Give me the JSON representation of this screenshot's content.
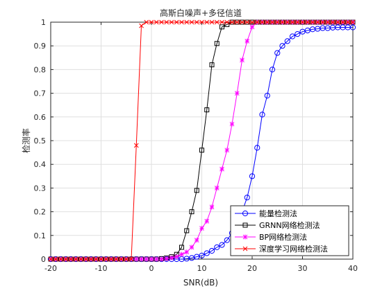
{
  "chart_data": {
    "type": "line",
    "title": "高斯白噪声+多径信道",
    "xlabel": "SNR(dB)",
    "ylabel": "检测率",
    "xlim": [
      -20,
      40
    ],
    "ylim": [
      0,
      1
    ],
    "xticks": [
      "-20",
      "-10",
      "0",
      "10",
      "20",
      "30",
      "40"
    ],
    "yticks": [
      "0",
      "0.1",
      "0.2",
      "0.3",
      "0.4",
      "0.5",
      "0.6",
      "0.7",
      "0.8",
      "0.9",
      "1"
    ],
    "grid": true,
    "legend_position": "bottom-right",
    "series": [
      {
        "name": "能量检测法",
        "color": "#0000ff",
        "marker": "circle",
        "x": [
          -20,
          -19,
          -18,
          -17,
          -16,
          -15,
          -14,
          -13,
          -12,
          -11,
          -10,
          -9,
          -8,
          -7,
          -6,
          -5,
          -4,
          -3,
          -2,
          -1,
          0,
          1,
          2,
          3,
          4,
          5,
          6,
          7,
          8,
          9,
          10,
          11,
          12,
          13,
          14,
          15,
          16,
          17,
          18,
          19,
          20,
          21,
          22,
          23,
          24,
          25,
          26,
          27,
          28,
          29,
          30,
          31,
          32,
          33,
          34,
          35,
          36,
          37,
          38,
          39,
          40
        ],
        "y": [
          0,
          0,
          0,
          0,
          0,
          0,
          0,
          0,
          0,
          0,
          0,
          0,
          0,
          0,
          0,
          0,
          0,
          0,
          0,
          0,
          0,
          0,
          0,
          0,
          0,
          0,
          0,
          0.002,
          0.005,
          0.01,
          0.015,
          0.025,
          0.035,
          0.05,
          0.06,
          0.08,
          0.11,
          0.15,
          0.2,
          0.26,
          0.35,
          0.47,
          0.61,
          0.69,
          0.8,
          0.87,
          0.9,
          0.92,
          0.94,
          0.95,
          0.96,
          0.965,
          0.97,
          0.972,
          0.975,
          0.975,
          0.977,
          0.978,
          0.978,
          0.978,
          0.978
        ]
      },
      {
        "name": "GRNN网络检测法",
        "color": "#000000",
        "marker": "square",
        "x": [
          -20,
          -19,
          -18,
          -17,
          -16,
          -15,
          -14,
          -13,
          -12,
          -11,
          -10,
          -9,
          -8,
          -7,
          -6,
          -5,
          -4,
          -3,
          -2,
          -1,
          0,
          1,
          2,
          3,
          4,
          5,
          6,
          7,
          8,
          9,
          10,
          11,
          12,
          13,
          14,
          15,
          16,
          17,
          18,
          19,
          20,
          21,
          22,
          23,
          24,
          25,
          26,
          27,
          28,
          29,
          30,
          31,
          32,
          33,
          34,
          35,
          36,
          37,
          38,
          39,
          40
        ],
        "y": [
          0,
          0,
          0,
          0,
          0,
          0,
          0,
          0,
          0,
          0,
          0,
          0,
          0,
          0,
          0,
          0,
          0,
          0,
          0,
          0,
          0,
          0,
          0.002,
          0.005,
          0.01,
          0.02,
          0.05,
          0.12,
          0.2,
          0.29,
          0.46,
          0.63,
          0.82,
          0.91,
          0.98,
          0.99,
          1,
          1,
          1,
          1,
          1,
          1,
          1,
          1,
          1,
          1,
          1,
          1,
          1,
          1,
          1,
          1,
          1,
          1,
          1,
          1,
          1,
          1,
          1,
          1,
          1
        ]
      },
      {
        "name": "BP网络检测法",
        "color": "#ff00ff",
        "marker": "asterisk",
        "x": [
          -20,
          -19,
          -18,
          -17,
          -16,
          -15,
          -14,
          -13,
          -12,
          -11,
          -10,
          -9,
          -8,
          -7,
          -6,
          -5,
          -4,
          -3,
          -2,
          -1,
          0,
          1,
          2,
          3,
          4,
          5,
          6,
          7,
          8,
          9,
          10,
          11,
          12,
          13,
          14,
          15,
          16,
          17,
          18,
          19,
          20,
          21,
          22,
          23,
          24,
          25,
          26,
          27,
          28,
          29,
          30,
          31,
          32,
          33,
          34,
          35,
          36,
          37,
          38,
          39,
          40
        ],
        "y": [
          0,
          0,
          0,
          0,
          0,
          0,
          0,
          0,
          0,
          0,
          0,
          0,
          0,
          0,
          0,
          0,
          0,
          0,
          0,
          0,
          0,
          0,
          0,
          0.002,
          0.005,
          0.01,
          0.02,
          0.03,
          0.05,
          0.08,
          0.13,
          0.16,
          0.22,
          0.3,
          0.38,
          0.46,
          0.57,
          0.7,
          0.84,
          0.92,
          0.98,
          1,
          1,
          1,
          1,
          1,
          1,
          1,
          1,
          1,
          1,
          1,
          1,
          1,
          1,
          1,
          1,
          1,
          1,
          1,
          1
        ]
      },
      {
        "name": "深度学习网络检测法",
        "color": "#ff0000",
        "marker": "x",
        "x": [
          -20,
          -19,
          -18,
          -17,
          -16,
          -15,
          -14,
          -13,
          -12,
          -11,
          -10,
          -9,
          -8,
          -7,
          -6,
          -5,
          -4,
          -3,
          -2,
          -1,
          0,
          1,
          2,
          3,
          4,
          5,
          6,
          7,
          8,
          9,
          10,
          11,
          12,
          13,
          14,
          15,
          16,
          17,
          18,
          19,
          20,
          21,
          22,
          23,
          24,
          25,
          26,
          27,
          28,
          29,
          30,
          31,
          32,
          33,
          34,
          35,
          36,
          37,
          38,
          39,
          40
        ],
        "y": [
          0,
          0,
          0,
          0,
          0,
          0,
          0,
          0,
          0,
          0,
          0,
          0,
          0,
          0,
          0,
          0,
          0,
          0.48,
          0.985,
          1,
          1,
          1,
          1,
          1,
          1,
          1,
          1,
          1,
          1,
          1,
          1,
          1,
          1,
          1,
          1,
          1,
          1,
          1,
          1,
          1,
          1,
          1,
          1,
          1,
          1,
          1,
          1,
          1,
          1,
          1,
          1,
          1,
          1,
          1,
          1,
          1,
          1,
          1,
          1,
          1,
          1
        ]
      }
    ]
  }
}
